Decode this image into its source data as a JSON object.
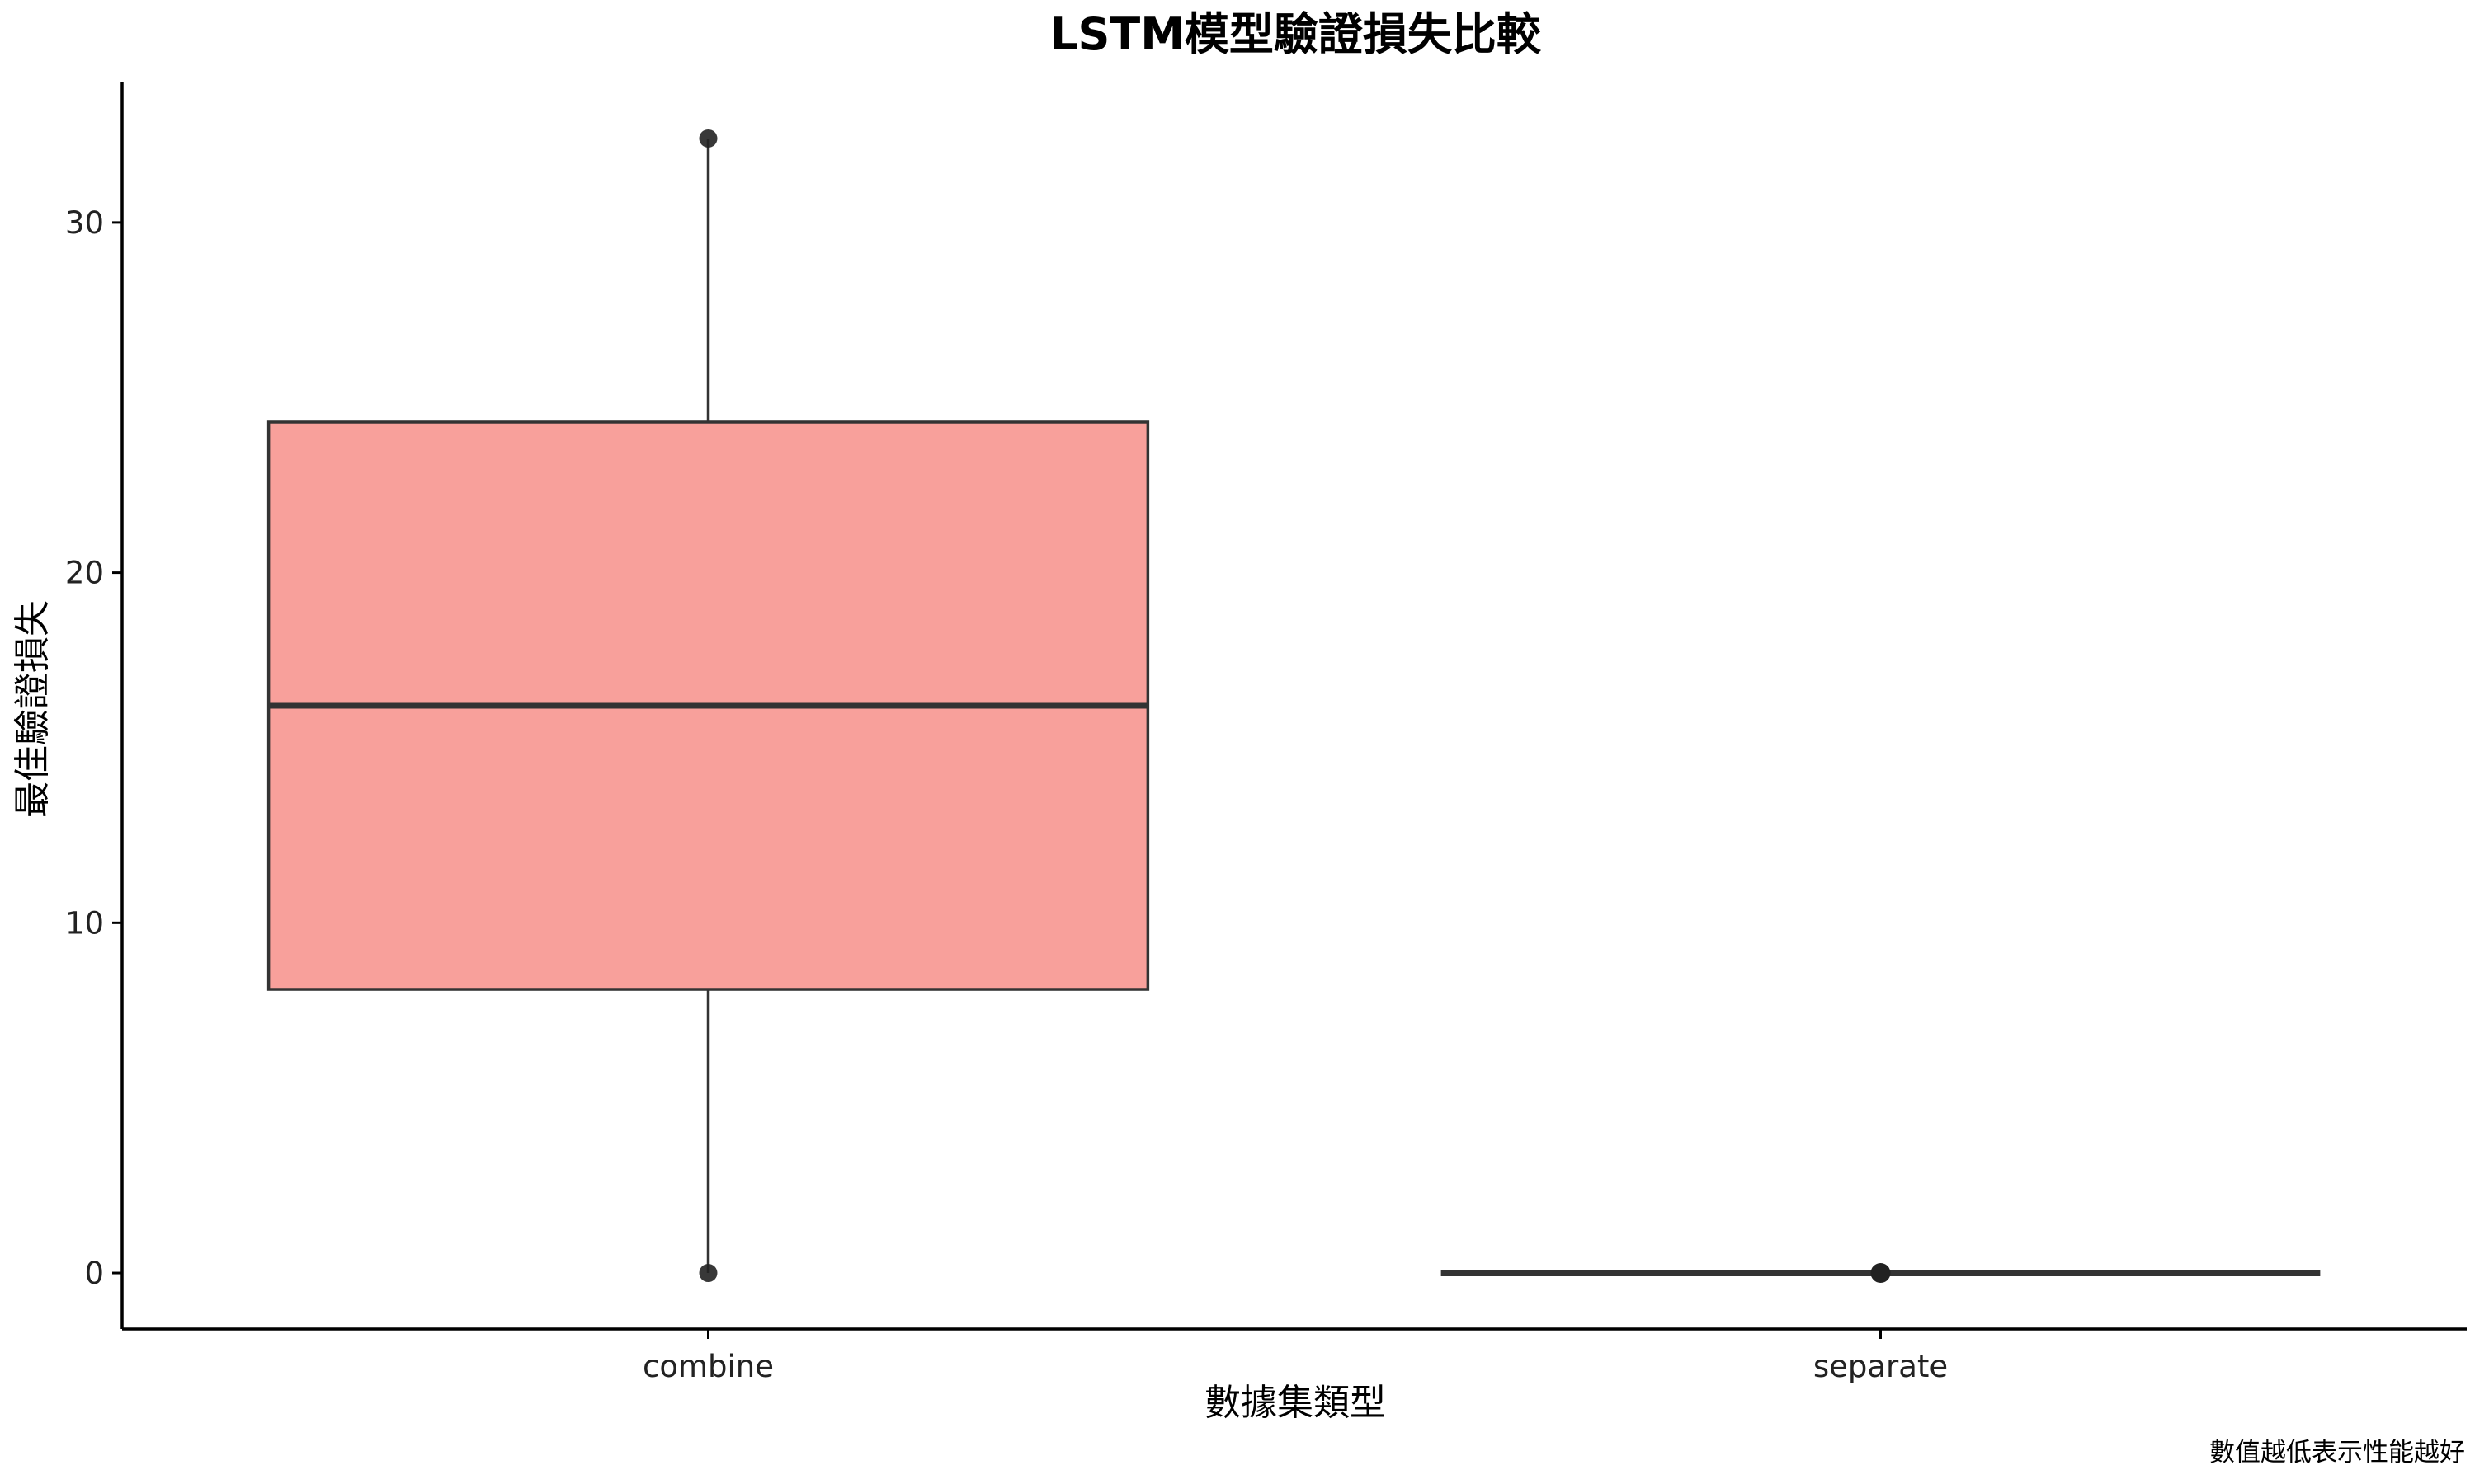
{
  "chart_data": {
    "type": "boxplot",
    "title": "LSTM模型驗證損失比較",
    "xlabel": "數據集類型",
    "ylabel": "最佳驗證損失",
    "caption": "數值越低表示性能越好",
    "ylim": [
      -1.6,
      34.0
    ],
    "yticks": [
      0,
      10,
      20,
      30
    ],
    "grid": false,
    "legend": "none",
    "categories": [
      "combine",
      "separate"
    ],
    "boxes": [
      {
        "category": "combine",
        "fill": "#F8A09B",
        "whisker_low": 0.0,
        "q1": 8.1,
        "median": 16.2,
        "q3": 24.3,
        "whisker_high": 32.4,
        "outliers": [
          0.0,
          32.4
        ]
      },
      {
        "category": "separate",
        "fill": "#F8A09B",
        "whisker_low": 0.0,
        "q1": 0.0,
        "median": 0.0,
        "q3": 0.0,
        "whisker_high": 0.0,
        "outliers": [
          0.0
        ]
      }
    ],
    "colors": {
      "box_fill": "#F8A09B",
      "line": "#333333",
      "axis": "#000000",
      "point": "#222222"
    }
  }
}
